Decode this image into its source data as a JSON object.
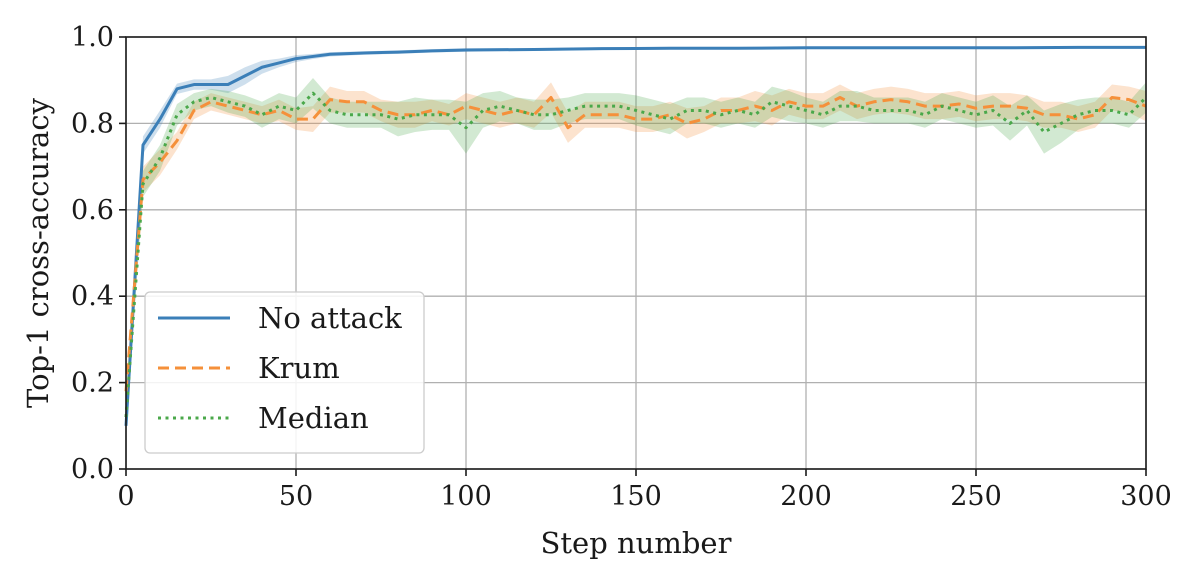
{
  "colors": {
    "no_attack": "#3b7fb8",
    "krum": "#f5903a",
    "median": "#4aa84a",
    "grid": "#b0b0b0",
    "frame": "#1a1a1a"
  },
  "chart_data": {
    "type": "line",
    "title": "",
    "xlabel": "Step number",
    "ylabel": "Top-1 cross-accuracy",
    "xlim": [
      0,
      300
    ],
    "ylim": [
      0.0,
      1.0
    ],
    "grid": true,
    "legend_position": "lower-left",
    "xticks": [
      0,
      50,
      100,
      150,
      200,
      250,
      300
    ],
    "xtick_labels": [
      "0",
      "50",
      "100",
      "150",
      "200",
      "250",
      "300"
    ],
    "yticks": [
      0.0,
      0.2,
      0.4,
      0.6,
      0.8,
      1.0
    ],
    "ytick_labels": [
      "0.0",
      "0.2",
      "0.4",
      "0.6",
      "0.8",
      "1.0"
    ],
    "series": [
      {
        "name": "No attack",
        "style": "solid",
        "color_key": "no_attack",
        "x": [
          0,
          5,
          10,
          15,
          20,
          25,
          30,
          35,
          40,
          45,
          50,
          55,
          60,
          70,
          80,
          90,
          100,
          120,
          140,
          160,
          180,
          200,
          220,
          240,
          260,
          280,
          300
        ],
        "y": [
          0.1,
          0.75,
          0.81,
          0.88,
          0.89,
          0.89,
          0.89,
          0.91,
          0.93,
          0.94,
          0.95,
          0.955,
          0.96,
          0.963,
          0.965,
          0.968,
          0.97,
          0.971,
          0.973,
          0.974,
          0.974,
          0.975,
          0.975,
          0.975,
          0.975,
          0.976,
          0.976
        ],
        "band": [
          0.012,
          0.02,
          0.02,
          0.012,
          0.012,
          0.012,
          0.02,
          0.02,
          0.015,
          0.01,
          0.008,
          0.006,
          0.005,
          0.004,
          0.004,
          0.004,
          0.004,
          0.003,
          0.003,
          0.003,
          0.003,
          0.003,
          0.003,
          0.003,
          0.003,
          0.003,
          0.003
        ]
      },
      {
        "name": "Krum",
        "style": "dashed",
        "color_key": "krum",
        "x": [
          0,
          5,
          10,
          15,
          20,
          25,
          30,
          35,
          40,
          45,
          50,
          55,
          60,
          65,
          70,
          75,
          80,
          85,
          90,
          95,
          100,
          105,
          110,
          115,
          120,
          125,
          130,
          135,
          140,
          145,
          150,
          155,
          160,
          165,
          170,
          175,
          180,
          185,
          190,
          195,
          200,
          205,
          210,
          215,
          220,
          225,
          230,
          235,
          240,
          245,
          250,
          255,
          260,
          265,
          270,
          275,
          280,
          285,
          290,
          295,
          300
        ],
        "y": [
          0.18,
          0.67,
          0.71,
          0.76,
          0.83,
          0.85,
          0.84,
          0.83,
          0.82,
          0.83,
          0.81,
          0.81,
          0.855,
          0.85,
          0.85,
          0.83,
          0.82,
          0.82,
          0.83,
          0.82,
          0.84,
          0.83,
          0.82,
          0.83,
          0.82,
          0.86,
          0.79,
          0.82,
          0.82,
          0.82,
          0.81,
          0.81,
          0.82,
          0.8,
          0.81,
          0.83,
          0.83,
          0.84,
          0.83,
          0.85,
          0.84,
          0.84,
          0.86,
          0.84,
          0.85,
          0.855,
          0.85,
          0.84,
          0.84,
          0.845,
          0.835,
          0.84,
          0.84,
          0.835,
          0.82,
          0.82,
          0.81,
          0.82,
          0.86,
          0.855,
          0.84
        ],
        "band": [
          0.02,
          0.03,
          0.03,
          0.02,
          0.02,
          0.02,
          0.02,
          0.02,
          0.02,
          0.025,
          0.025,
          0.03,
          0.03,
          0.025,
          0.025,
          0.025,
          0.03,
          0.03,
          0.025,
          0.025,
          0.03,
          0.03,
          0.03,
          0.03,
          0.03,
          0.035,
          0.035,
          0.03,
          0.03,
          0.03,
          0.03,
          0.03,
          0.03,
          0.035,
          0.03,
          0.03,
          0.03,
          0.035,
          0.035,
          0.03,
          0.03,
          0.03,
          0.03,
          0.03,
          0.03,
          0.03,
          0.03,
          0.03,
          0.03,
          0.03,
          0.03,
          0.03,
          0.03,
          0.03,
          0.03,
          0.03,
          0.03,
          0.03,
          0.03,
          0.03,
          0.035
        ]
      },
      {
        "name": "Median",
        "style": "dotted",
        "color_key": "median",
        "x": [
          0,
          5,
          10,
          15,
          20,
          25,
          30,
          35,
          40,
          45,
          50,
          55,
          60,
          65,
          70,
          75,
          80,
          85,
          90,
          95,
          100,
          105,
          110,
          115,
          120,
          125,
          130,
          135,
          140,
          145,
          150,
          155,
          160,
          165,
          170,
          175,
          180,
          185,
          190,
          195,
          200,
          205,
          210,
          215,
          220,
          225,
          230,
          235,
          240,
          245,
          250,
          255,
          260,
          265,
          270,
          275,
          280,
          285,
          290,
          295,
          300
        ],
        "y": [
          0.12,
          0.66,
          0.72,
          0.82,
          0.85,
          0.86,
          0.85,
          0.84,
          0.82,
          0.84,
          0.83,
          0.87,
          0.83,
          0.82,
          0.82,
          0.82,
          0.81,
          0.82,
          0.82,
          0.82,
          0.79,
          0.83,
          0.84,
          0.83,
          0.82,
          0.82,
          0.83,
          0.84,
          0.84,
          0.84,
          0.83,
          0.82,
          0.81,
          0.83,
          0.83,
          0.82,
          0.83,
          0.82,
          0.85,
          0.84,
          0.83,
          0.82,
          0.84,
          0.84,
          0.83,
          0.83,
          0.83,
          0.82,
          0.84,
          0.83,
          0.82,
          0.83,
          0.8,
          0.83,
          0.78,
          0.8,
          0.82,
          0.83,
          0.83,
          0.82,
          0.86
        ],
        "band": [
          0.02,
          0.03,
          0.03,
          0.025,
          0.02,
          0.02,
          0.025,
          0.025,
          0.03,
          0.03,
          0.03,
          0.035,
          0.03,
          0.03,
          0.03,
          0.03,
          0.04,
          0.04,
          0.035,
          0.035,
          0.06,
          0.04,
          0.035,
          0.03,
          0.035,
          0.035,
          0.03,
          0.03,
          0.03,
          0.03,
          0.035,
          0.035,
          0.035,
          0.03,
          0.03,
          0.03,
          0.03,
          0.03,
          0.035,
          0.035,
          0.03,
          0.03,
          0.035,
          0.035,
          0.03,
          0.03,
          0.03,
          0.03,
          0.03,
          0.03,
          0.03,
          0.035,
          0.04,
          0.035,
          0.05,
          0.045,
          0.035,
          0.03,
          0.03,
          0.03,
          0.035
        ]
      }
    ]
  }
}
